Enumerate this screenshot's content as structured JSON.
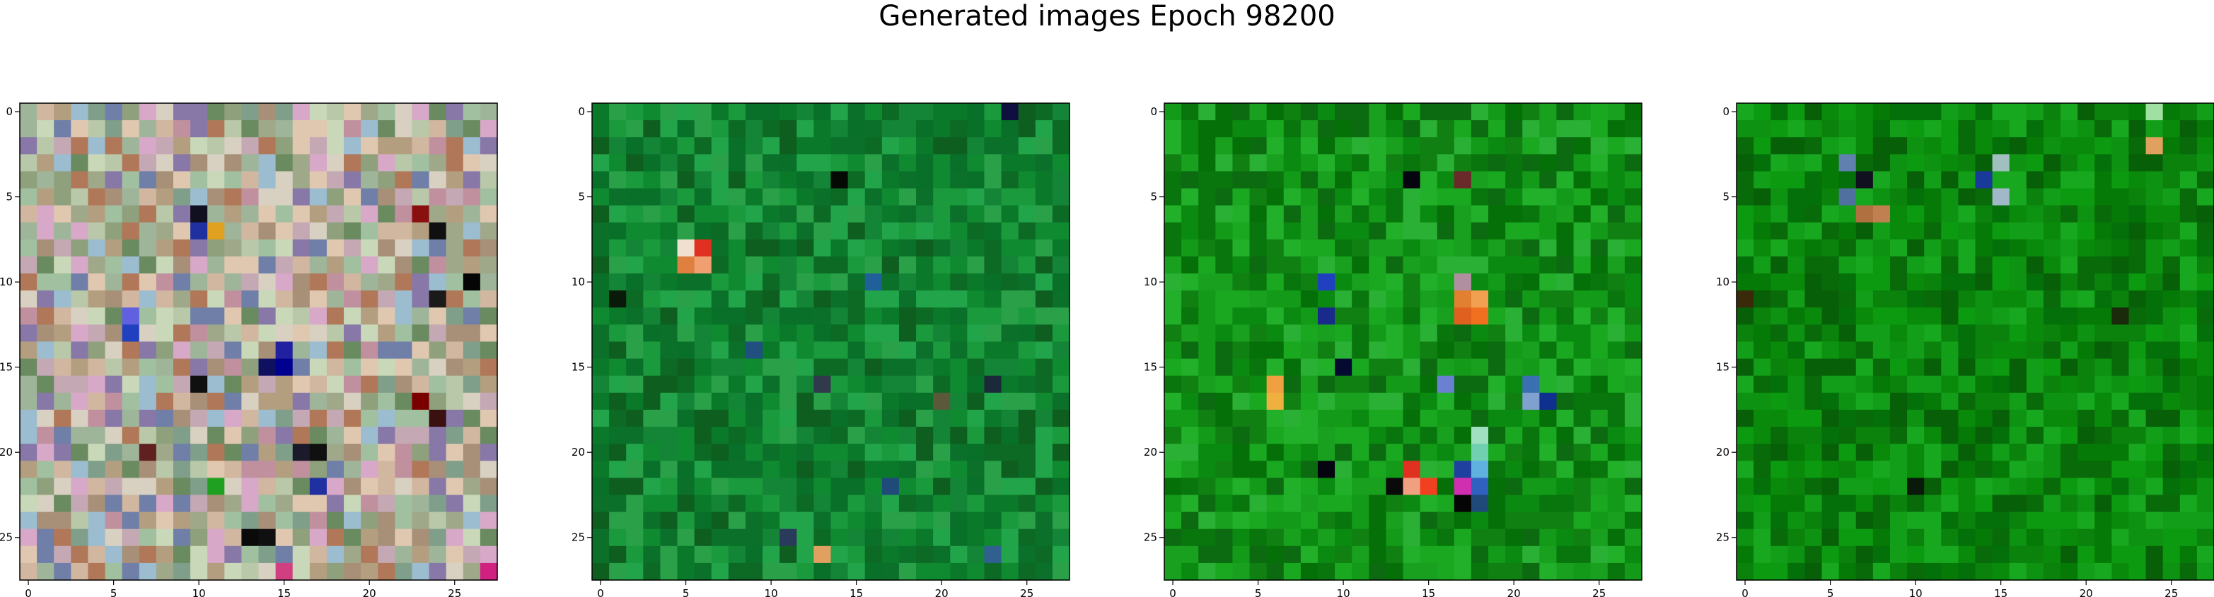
{
  "chart_data": {
    "type": "heatmap",
    "title": "Generated images Epoch 98200",
    "grid": false,
    "panels": [
      {
        "name": "",
        "width": 28,
        "height": 28,
        "xticks": [
          0,
          5,
          10,
          15,
          20,
          25
        ],
        "yticks": [
          0,
          5,
          10,
          15,
          20,
          25
        ],
        "palette": [
          "#b39f80",
          "#a0a88a",
          "#c4a8b4",
          "#8fa07c",
          "#d1b6a0",
          "#9fb59a",
          "#c0909f",
          "#7f9f8a",
          "#b8c8a8",
          "#d8a8c8",
          "#6f7fa8",
          "#e0c8b0",
          "#a89078",
          "#8878a8",
          "#c8d8b8",
          "#9cbcd0",
          "#b07858",
          "#6a8a60",
          "#d8d0c0",
          "#a0c0a0"
        ],
        "accents": [
          {
            "r": 6,
            "c": 10,
            "color": "#101020"
          },
          {
            "r": 6,
            "c": 23,
            "color": "#8a1010"
          },
          {
            "r": 7,
            "c": 10,
            "color": "#2030a0"
          },
          {
            "r": 7,
            "c": 11,
            "color": "#e0a020"
          },
          {
            "r": 7,
            "c": 24,
            "color": "#101010"
          },
          {
            "r": 10,
            "c": 26,
            "color": "#050505"
          },
          {
            "r": 11,
            "c": 24,
            "color": "#1a1a1a"
          },
          {
            "r": 12,
            "c": 6,
            "color": "#6060e0"
          },
          {
            "r": 13,
            "c": 6,
            "color": "#2040c0"
          },
          {
            "r": 14,
            "c": 15,
            "color": "#2020a0"
          },
          {
            "r": 15,
            "c": 14,
            "color": "#101060"
          },
          {
            "r": 15,
            "c": 15,
            "color": "#000090"
          },
          {
            "r": 16,
            "c": 10,
            "color": "#101010"
          },
          {
            "r": 17,
            "c": 23,
            "color": "#7a0000"
          },
          {
            "r": 18,
            "c": 24,
            "color": "#3a1010"
          },
          {
            "r": 20,
            "c": 7,
            "color": "#602020"
          },
          {
            "r": 20,
            "c": 16,
            "color": "#1a1a2a"
          },
          {
            "r": 20,
            "c": 17,
            "color": "#101010"
          },
          {
            "r": 22,
            "c": 11,
            "color": "#20a020"
          },
          {
            "r": 22,
            "c": 17,
            "color": "#2030a0"
          },
          {
            "r": 25,
            "c": 13,
            "color": "#0a0a0a"
          },
          {
            "r": 25,
            "c": 14,
            "color": "#101010"
          },
          {
            "r": 27,
            "c": 15,
            "color": "#d04080"
          },
          {
            "r": 27,
            "c": 27,
            "color": "#d02080"
          }
        ]
      },
      {
        "name": "",
        "width": 28,
        "height": 28,
        "xticks": [
          0,
          5,
          10,
          15,
          20,
          25
        ],
        "yticks": [
          0,
          5,
          10,
          15,
          20,
          25
        ],
        "palette": [
          "#0a7a2a",
          "#108a30",
          "#0c6a24",
          "#1a9a3c",
          "#0e5e20",
          "#2aa048",
          "#148436",
          "#0a702a",
          "#22a44a",
          "#087028"
        ],
        "accents": [
          {
            "r": 0,
            "c": 24,
            "color": "#101040"
          },
          {
            "r": 4,
            "c": 14,
            "color": "#050a05"
          },
          {
            "r": 8,
            "c": 5,
            "color": "#f0e0d0"
          },
          {
            "r": 8,
            "c": 6,
            "color": "#e03020"
          },
          {
            "r": 9,
            "c": 5,
            "color": "#e08040"
          },
          {
            "r": 9,
            "c": 6,
            "color": "#f0a070"
          },
          {
            "r": 10,
            "c": 16,
            "color": "#20609a"
          },
          {
            "r": 11,
            "c": 1,
            "color": "#0a1a0a"
          },
          {
            "r": 14,
            "c": 9,
            "color": "#205080"
          },
          {
            "r": 16,
            "c": 13,
            "color": "#303a4a"
          },
          {
            "r": 16,
            "c": 23,
            "color": "#1a2a3a"
          },
          {
            "r": 17,
            "c": 20,
            "color": "#5a5a3a"
          },
          {
            "r": 22,
            "c": 17,
            "color": "#204a7a"
          },
          {
            "r": 25,
            "c": 11,
            "color": "#2a3a5a"
          },
          {
            "r": 26,
            "c": 13,
            "color": "#e0a060"
          },
          {
            "r": 26,
            "c": 23,
            "color": "#306090"
          }
        ]
      },
      {
        "name": "",
        "width": 28,
        "height": 28,
        "xticks": [
          0,
          5,
          10,
          15,
          20,
          25
        ],
        "yticks": [
          0,
          5,
          10,
          15,
          20,
          25
        ],
        "palette": [
          "#0a8a10",
          "#129a18",
          "#08760c",
          "#1aa820",
          "#0c6a10",
          "#22b02a",
          "#108012",
          "#2ab034",
          "#067008",
          "#18a01e"
        ],
        "accents": [
          {
            "r": 4,
            "c": 14,
            "color": "#050510"
          },
          {
            "r": 4,
            "c": 17,
            "color": "#6a2a2a"
          },
          {
            "r": 10,
            "c": 9,
            "color": "#2040c0"
          },
          {
            "r": 10,
            "c": 17,
            "color": "#b090a0"
          },
          {
            "r": 11,
            "c": 17,
            "color": "#e08030"
          },
          {
            "r": 11,
            "c": 18,
            "color": "#f0a050"
          },
          {
            "r": 12,
            "c": 9,
            "color": "#1a2a8a"
          },
          {
            "r": 12,
            "c": 17,
            "color": "#e06020"
          },
          {
            "r": 12,
            "c": 18,
            "color": "#f07020"
          },
          {
            "r": 15,
            "c": 10,
            "color": "#050a30"
          },
          {
            "r": 16,
            "c": 6,
            "color": "#f0a040"
          },
          {
            "r": 16,
            "c": 16,
            "color": "#6a80d0"
          },
          {
            "r": 16,
            "c": 21,
            "color": "#3a70b0"
          },
          {
            "r": 17,
            "c": 6,
            "color": "#f0b040"
          },
          {
            "r": 17,
            "c": 21,
            "color": "#80a0d0"
          },
          {
            "r": 17,
            "c": 22,
            "color": "#103090"
          },
          {
            "r": 19,
            "c": 18,
            "color": "#a0e0c0"
          },
          {
            "r": 20,
            "c": 18,
            "color": "#70d0b0"
          },
          {
            "r": 21,
            "c": 9,
            "color": "#050510"
          },
          {
            "r": 21,
            "c": 14,
            "color": "#e03020"
          },
          {
            "r": 21,
            "c": 17,
            "color": "#2040a0"
          },
          {
            "r": 21,
            "c": 18,
            "color": "#60b0e0"
          },
          {
            "r": 22,
            "c": 13,
            "color": "#0a0a0a"
          },
          {
            "r": 22,
            "c": 14,
            "color": "#f0a080"
          },
          {
            "r": 22,
            "c": 15,
            "color": "#f04020"
          },
          {
            "r": 22,
            "c": 17,
            "color": "#d030b0"
          },
          {
            "r": 22,
            "c": 18,
            "color": "#3060c0"
          },
          {
            "r": 23,
            "c": 17,
            "color": "#050505"
          },
          {
            "r": 23,
            "c": 18,
            "color": "#204a7a"
          }
        ]
      },
      {
        "name": "",
        "width": 28,
        "height": 28,
        "xticks": [
          0,
          5,
          10,
          15,
          20,
          25
        ],
        "yticks": [
          0,
          5,
          10,
          15,
          20,
          25
        ],
        "palette": [
          "#067a06",
          "#0a8a0a",
          "#0c9a10",
          "#086a08",
          "#129e18",
          "#0a820c",
          "#04700a",
          "#18a820",
          "#0e9212",
          "#076008"
        ],
        "accents": [
          {
            "r": 0,
            "c": 24,
            "color": "#a0e0a0"
          },
          {
            "r": 2,
            "c": 24,
            "color": "#e0a060"
          },
          {
            "r": 3,
            "c": 6,
            "color": "#6080b0"
          },
          {
            "r": 3,
            "c": 15,
            "color": "#a0c0c0"
          },
          {
            "r": 4,
            "c": 7,
            "color": "#101020"
          },
          {
            "r": 4,
            "c": 14,
            "color": "#1a3a9a"
          },
          {
            "r": 5,
            "c": 6,
            "color": "#5070a0"
          },
          {
            "r": 5,
            "c": 15,
            "color": "#a0b8c8"
          },
          {
            "r": 6,
            "c": 7,
            "color": "#b07040"
          },
          {
            "r": 6,
            "c": 8,
            "color": "#c08050"
          },
          {
            "r": 11,
            "c": 0,
            "color": "#3a2a0a"
          },
          {
            "r": 12,
            "c": 22,
            "color": "#1a2a0a"
          },
          {
            "r": 22,
            "c": 10,
            "color": "#0a1a0a"
          }
        ]
      }
    ]
  }
}
